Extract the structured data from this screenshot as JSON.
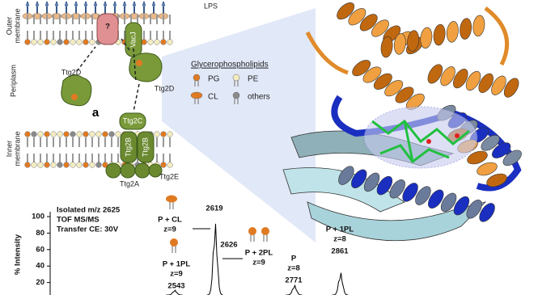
{
  "diagram": {
    "lps": "LPS",
    "outer_membrane": [
      "Outer",
      "membrane"
    ],
    "periplasm": "Periplasm",
    "inner_membrane": [
      "Inner",
      "membrane"
    ],
    "unknown": "?",
    "vacj": "VacJ",
    "ttg2d_left": "Ttg2D",
    "ttg2d_right": "Ttg2D",
    "ttg2c": "Ttg2C",
    "ttg2b_left": "Ttg2B",
    "ttg2b_right": "Ttg2B",
    "ttg2a": "Ttg2A",
    "ttg2e": "Ttg2E",
    "panel": "a"
  },
  "legend": {
    "title": "Glycerophospholipids",
    "items": [
      "PG",
      "PE",
      "CL",
      "others"
    ]
  },
  "spectrum": {
    "info": [
      "Isolated m/z 2625",
      "TOF MS/MS",
      "Transfer CE: 30V"
    ],
    "y_label": "% Intensity",
    "yticks": [
      100,
      80,
      60,
      40,
      20
    ],
    "peak_2619": 2619,
    "peak_2626": 2626,
    "annotations": [
      {
        "label": "P + CL",
        "charge": "z=9"
      },
      {
        "label": "P + 1PL",
        "charge": "z=9",
        "mz": 2543
      },
      {
        "label": "P + 2PL",
        "charge": "z=9"
      },
      {
        "label": "P",
        "charge": "z=8",
        "mz": 2771
      },
      {
        "label": "P + 1PL",
        "charge": "z=8",
        "mz": 2861
      }
    ]
  }
}
